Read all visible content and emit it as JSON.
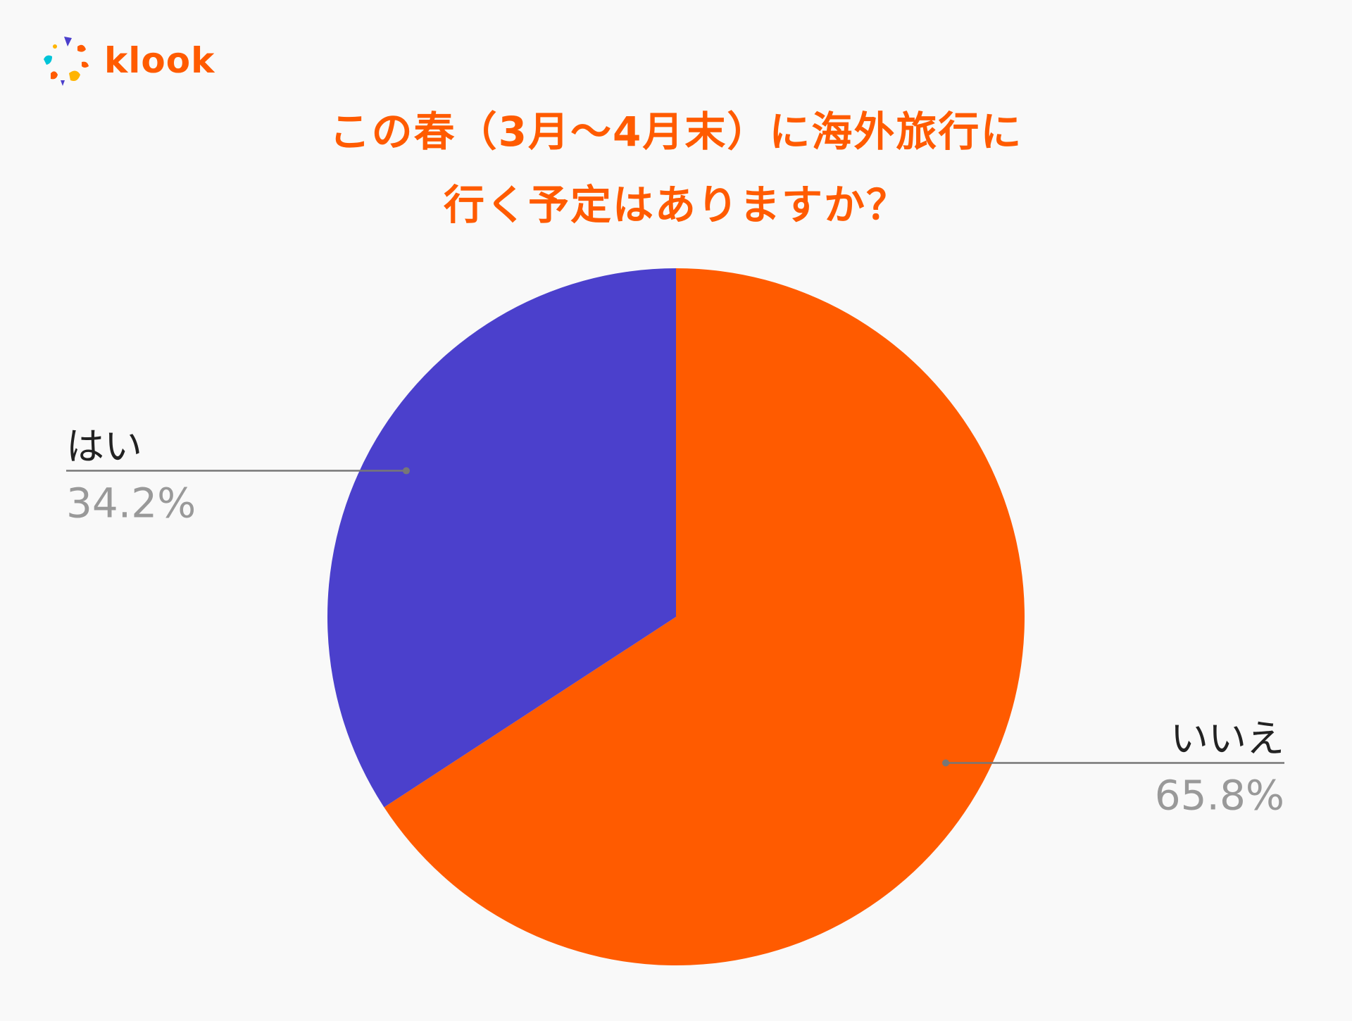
{
  "logo": {
    "text": "klook",
    "icon": "klook-flower-icon",
    "icon_colors": [
      "#4b3fcc",
      "#ff5b00",
      "#00c4d8",
      "#ffb400",
      "#ff5b00",
      "#4b3fcc"
    ]
  },
  "title": {
    "line1": "この春（3月〜4月末）に海外旅行に",
    "line2": "行く予定はありますか？",
    "color": "#ff5b00"
  },
  "chart_data": {
    "type": "pie",
    "title": "この春（3月〜4月末）に海外旅行に行く予定はありますか？",
    "slices": [
      {
        "label": "いいえ",
        "value": 65.8,
        "display": "65.8%",
        "color": "#ff5b00"
      },
      {
        "label": "はい",
        "value": 34.2,
        "display": "34.2%",
        "color": "#4b40cc"
      }
    ],
    "start_angle": "12 o'clock",
    "direction": "clockwise",
    "label_color": "#222222",
    "value_color": "#999999",
    "leader_color": "#777777"
  }
}
